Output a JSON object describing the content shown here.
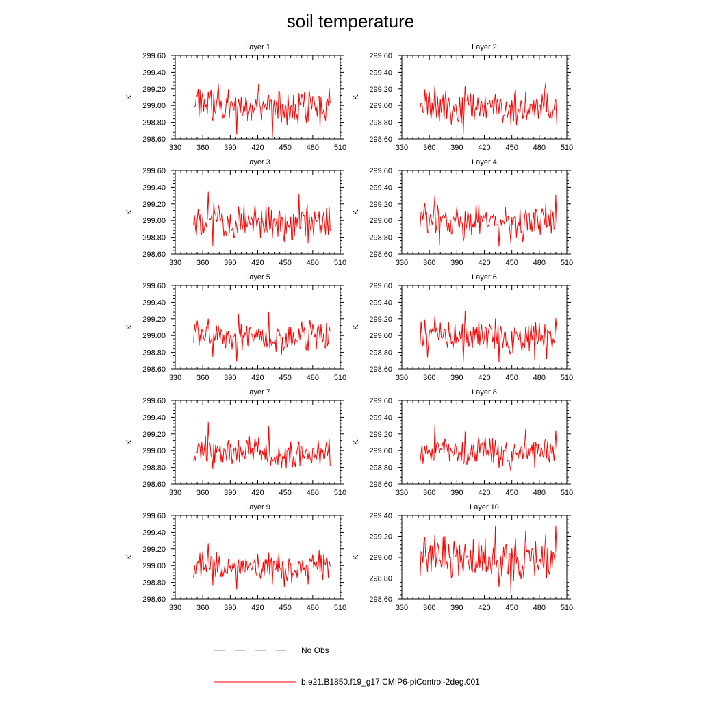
{
  "figure": {
    "title": "soil temperature"
  },
  "legend": {
    "placement": "bottom-center",
    "entries": [
      {
        "label": "No Obs",
        "style": "dashed",
        "color": "#7f7fbf"
      },
      {
        "label": "b.e21.B1850.f19_g17.CMIP6-piControl-2deg.001",
        "style": "solid",
        "color": "#ff0000"
      }
    ]
  },
  "chart_data": [
    {
      "type": "line",
      "title": "Layer 1",
      "ylabel": "K",
      "xlim": [
        330,
        510
      ],
      "ylim": [
        298.6,
        299.6
      ],
      "xticks": [
        330,
        360,
        390,
        420,
        450,
        480,
        510
      ],
      "yticks": [
        298.6,
        298.8,
        299.0,
        299.2,
        299.4,
        299.6
      ],
      "y_decimals": 2,
      "series": [
        {
          "color": "#ff0000",
          "x_start": 350,
          "x_end": 499
        }
      ]
    },
    {
      "type": "line",
      "title": "Layer 2",
      "ylabel": "K",
      "xlim": [
        330,
        510
      ],
      "ylim": [
        298.6,
        299.6
      ],
      "xticks": [
        330,
        360,
        390,
        420,
        450,
        480,
        510
      ],
      "yticks": [
        298.6,
        298.8,
        299.0,
        299.2,
        299.4,
        299.6
      ],
      "y_decimals": 2,
      "series": [
        {
          "color": "#ff0000",
          "x_start": 350,
          "x_end": 499
        }
      ]
    },
    {
      "type": "line",
      "title": "Layer 3",
      "ylabel": "K",
      "xlim": [
        330,
        510
      ],
      "ylim": [
        298.6,
        299.6
      ],
      "xticks": [
        330,
        360,
        390,
        420,
        450,
        480,
        510
      ],
      "yticks": [
        298.6,
        298.8,
        299.0,
        299.2,
        299.4,
        299.6
      ],
      "y_decimals": 2,
      "series": [
        {
          "color": "#ff0000",
          "x_start": 350,
          "x_end": 499
        }
      ]
    },
    {
      "type": "line",
      "title": "Layer 4",
      "ylabel": "K",
      "xlim": [
        330,
        510
      ],
      "ylim": [
        298.6,
        299.6
      ],
      "xticks": [
        330,
        360,
        390,
        420,
        450,
        480,
        510
      ],
      "yticks": [
        298.6,
        298.8,
        299.0,
        299.2,
        299.4,
        299.6
      ],
      "y_decimals": 2,
      "series": [
        {
          "color": "#ff0000",
          "x_start": 350,
          "x_end": 499
        }
      ]
    },
    {
      "type": "line",
      "title": "Layer 5",
      "ylabel": "K",
      "xlim": [
        330,
        510
      ],
      "ylim": [
        298.6,
        299.6
      ],
      "xticks": [
        330,
        360,
        390,
        420,
        450,
        480,
        510
      ],
      "yticks": [
        298.6,
        298.8,
        299.0,
        299.2,
        299.4,
        299.6
      ],
      "y_decimals": 2,
      "series": [
        {
          "color": "#ff0000",
          "x_start": 350,
          "x_end": 499
        }
      ]
    },
    {
      "type": "line",
      "title": "Layer 6",
      "ylabel": "K",
      "xlim": [
        330,
        510
      ],
      "ylim": [
        298.6,
        299.6
      ],
      "xticks": [
        330,
        360,
        390,
        420,
        450,
        480,
        510
      ],
      "yticks": [
        298.6,
        298.8,
        299.0,
        299.2,
        299.4,
        299.6
      ],
      "y_decimals": 2,
      "series": [
        {
          "color": "#ff0000",
          "x_start": 350,
          "x_end": 499
        }
      ]
    },
    {
      "type": "line",
      "title": "Layer 7",
      "ylabel": "K",
      "xlim": [
        330,
        510
      ],
      "ylim": [
        298.6,
        299.6
      ],
      "xticks": [
        330,
        360,
        390,
        420,
        450,
        480,
        510
      ],
      "yticks": [
        298.6,
        298.8,
        299.0,
        299.2,
        299.4,
        299.6
      ],
      "y_decimals": 2,
      "series": [
        {
          "color": "#ff0000",
          "x_start": 350,
          "x_end": 499
        }
      ]
    },
    {
      "type": "line",
      "title": "Layer 8",
      "ylabel": "K",
      "xlim": [
        330,
        510
      ],
      "ylim": [
        298.6,
        299.6
      ],
      "xticks": [
        330,
        360,
        390,
        420,
        450,
        480,
        510
      ],
      "yticks": [
        298.6,
        298.8,
        299.0,
        299.2,
        299.4,
        299.6
      ],
      "y_decimals": 2,
      "series": [
        {
          "color": "#ff0000",
          "x_start": 350,
          "x_end": 499
        }
      ]
    },
    {
      "type": "line",
      "title": "Layer 9",
      "ylabel": "K",
      "xlim": [
        330,
        510
      ],
      "ylim": [
        298.6,
        299.6
      ],
      "xticks": [
        330,
        360,
        390,
        420,
        450,
        480,
        510
      ],
      "yticks": [
        298.6,
        298.8,
        299.0,
        299.2,
        299.4,
        299.6
      ],
      "y_decimals": 2,
      "series": [
        {
          "color": "#ff0000",
          "x_start": 350,
          "x_end": 499
        }
      ]
    },
    {
      "type": "line",
      "title": "Layer 10",
      "ylabel": "K",
      "xlim": [
        330,
        510
      ],
      "ylim": [
        298.6,
        299.4
      ],
      "xticks": [
        330,
        360,
        390,
        420,
        450,
        480,
        510
      ],
      "yticks": [
        298.6,
        298.8,
        299.0,
        299.2,
        299.4
      ],
      "y_decimals": 2,
      "series": [
        {
          "color": "#ff0000",
          "x_start": 350,
          "x_end": 499
        }
      ]
    }
  ]
}
